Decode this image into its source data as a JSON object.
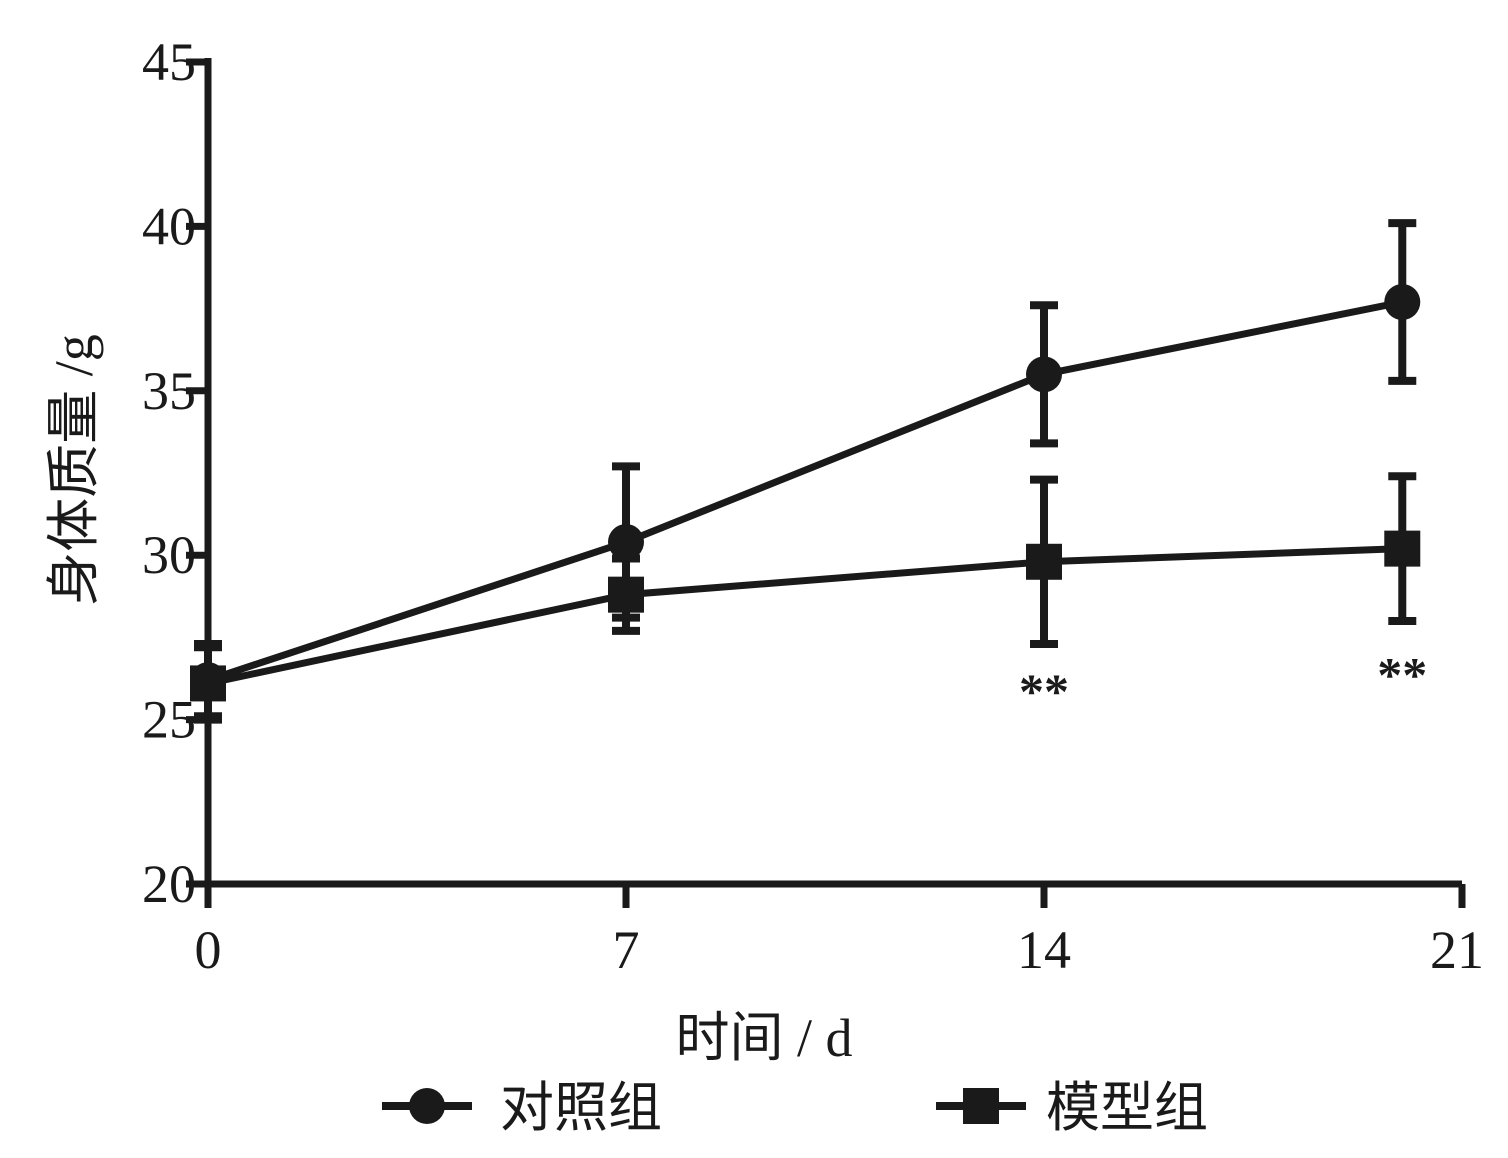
{
  "chart_data": {
    "type": "line",
    "x": [
      0,
      7,
      14,
      20
    ],
    "x_ticks": [
      "0",
      "7",
      "14",
      "21"
    ],
    "x_tick_values": [
      0,
      7,
      14,
      21
    ],
    "y_ticks": [
      "20",
      "25",
      "30",
      "35",
      "40",
      "45"
    ],
    "y_tick_values": [
      20,
      25,
      30,
      35,
      40,
      45
    ],
    "xlim": [
      0,
      21
    ],
    "ylim": [
      20,
      45
    ],
    "xlabel": "时间 / d",
    "ylabel": "身体质量 /g",
    "grid": false,
    "legend_position": "bottom",
    "series": [
      {
        "name": "对照组",
        "marker": "circle",
        "values": [
          26.2,
          30.4,
          35.5,
          37.7
        ],
        "error": [
          1.1,
          2.3,
          2.1,
          2.4
        ]
      },
      {
        "name": "模型组",
        "marker": "square",
        "values": [
          26.1,
          28.8,
          29.8,
          30.2
        ],
        "error": [
          1.1,
          1.1,
          2.5,
          2.2
        ]
      }
    ],
    "annotations": [
      {
        "x": 14,
        "y": 25.9,
        "text": "**"
      },
      {
        "x": 20,
        "y": 26.4,
        "text": "**"
      }
    ],
    "colors": {
      "line": "#1a1a1a"
    }
  }
}
